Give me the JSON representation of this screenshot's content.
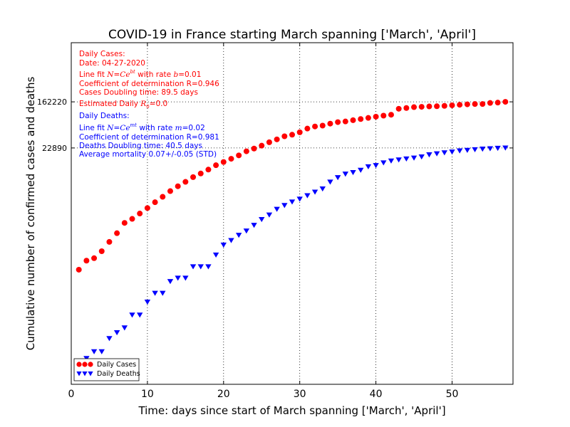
{
  "chart_data": {
    "type": "scatter",
    "title": "COVID-19 in France starting March spanning ['March', 'April']",
    "xlabel": "Time: days since start of March spanning ['March', 'April']",
    "ylabel": "Cumulative number of confirmed cases and deaths",
    "xlim": [
      0,
      58
    ],
    "ylim": [
      1,
      2000000
    ],
    "yscale": "log",
    "xticks": [
      0,
      10,
      20,
      30,
      40,
      50
    ],
    "yticks": [
      {
        "value": 162220,
        "label": "162220"
      },
      {
        "value": 22890,
        "label": "22890"
      }
    ],
    "grid": true,
    "legend_position": "lower-left",
    "colors": {
      "cases": "#ff0000",
      "deaths": "#0000ff"
    },
    "series": [
      {
        "name": "Daily Cases",
        "marker": "circle",
        "color": "#ff0000",
        "x": [
          1,
          2,
          3,
          4,
          5,
          6,
          7,
          8,
          9,
          10,
          11,
          12,
          13,
          14,
          15,
          16,
          17,
          18,
          19,
          20,
          21,
          22,
          23,
          24,
          25,
          26,
          27,
          28,
          29,
          30,
          31,
          32,
          33,
          34,
          35,
          36,
          37,
          38,
          39,
          40,
          41,
          42,
          43,
          44,
          45,
          46,
          47,
          48,
          49,
          50,
          51,
          52,
          53,
          54,
          55,
          56,
          57
        ],
        "values": [
          130,
          191,
          212,
          285,
          423,
          613,
          949,
          1126,
          1412,
          1784,
          2281,
          2876,
          3661,
          4499,
          5423,
          6633,
          7730,
          9134,
          10995,
          12612,
          14459,
          16689,
          19856,
          22302,
          25233,
          29155,
          32964,
          37575,
          40174,
          44550,
          52128,
          56989,
          59105,
          64338,
          68605,
          70478,
          74390,
          78167,
          82048,
          86334,
          90276,
          93790,
          120804,
          124869,
          129654,
          131361,
          133585,
          134582,
          136779,
          140000,
          143303,
          145960,
          147863,
          148084,
          154715,
          157026,
          162220
        ]
      },
      {
        "name": "Daily Deaths",
        "marker": "triangle-down",
        "color": "#0000ff",
        "x": [
          1,
          2,
          3,
          4,
          5,
          6,
          7,
          8,
          9,
          10,
          11,
          12,
          13,
          14,
          15,
          16,
          17,
          18,
          19,
          20,
          21,
          22,
          23,
          24,
          25,
          26,
          27,
          28,
          29,
          30,
          31,
          32,
          33,
          34,
          35,
          36,
          37,
          38,
          39,
          40,
          41,
          42,
          43,
          44,
          45,
          46,
          47,
          48,
          49,
          50,
          51,
          52,
          53,
          54,
          55,
          56,
          57
        ],
        "values": [
          2,
          3,
          4,
          4,
          7,
          9,
          11,
          19,
          19,
          33,
          48,
          48,
          79,
          91,
          91,
          148,
          148,
          148,
          243,
          372,
          450,
          562,
          674,
          860,
          1100,
          1331,
          1696,
          1995,
          2314,
          2606,
          3024,
          3523,
          4032,
          5387,
          6507,
          7560,
          8078,
          8911,
          10328,
          10869,
          12210,
          13197,
          13832,
          14393,
          14967,
          15712,
          17167,
          17920,
          18681,
          19323,
          20265,
          20796,
          21340,
          21856,
          22245,
          22614,
          22890
        ]
      }
    ],
    "annotations": {
      "cases": [
        "Daily Cases:",
        "Date: 04-27-2020",
        "Line fit $N=Ce^{bt}$ with rate $b=0.01$",
        "Coefficient of determination R=0.946",
        "Cases Doubling time: 89.5 days",
        "Estimated Daily $R_0=0.0$"
      ],
      "deaths": [
        "Daily Deaths:",
        "Line fit $N=Ce^{mt}$ with rate $m=0.02$",
        "Coefficient of determination R=0.981",
        "Deaths Doubling time: 40.5 days",
        "Average mortality 0.07+/-0.05 (STD)"
      ]
    }
  }
}
